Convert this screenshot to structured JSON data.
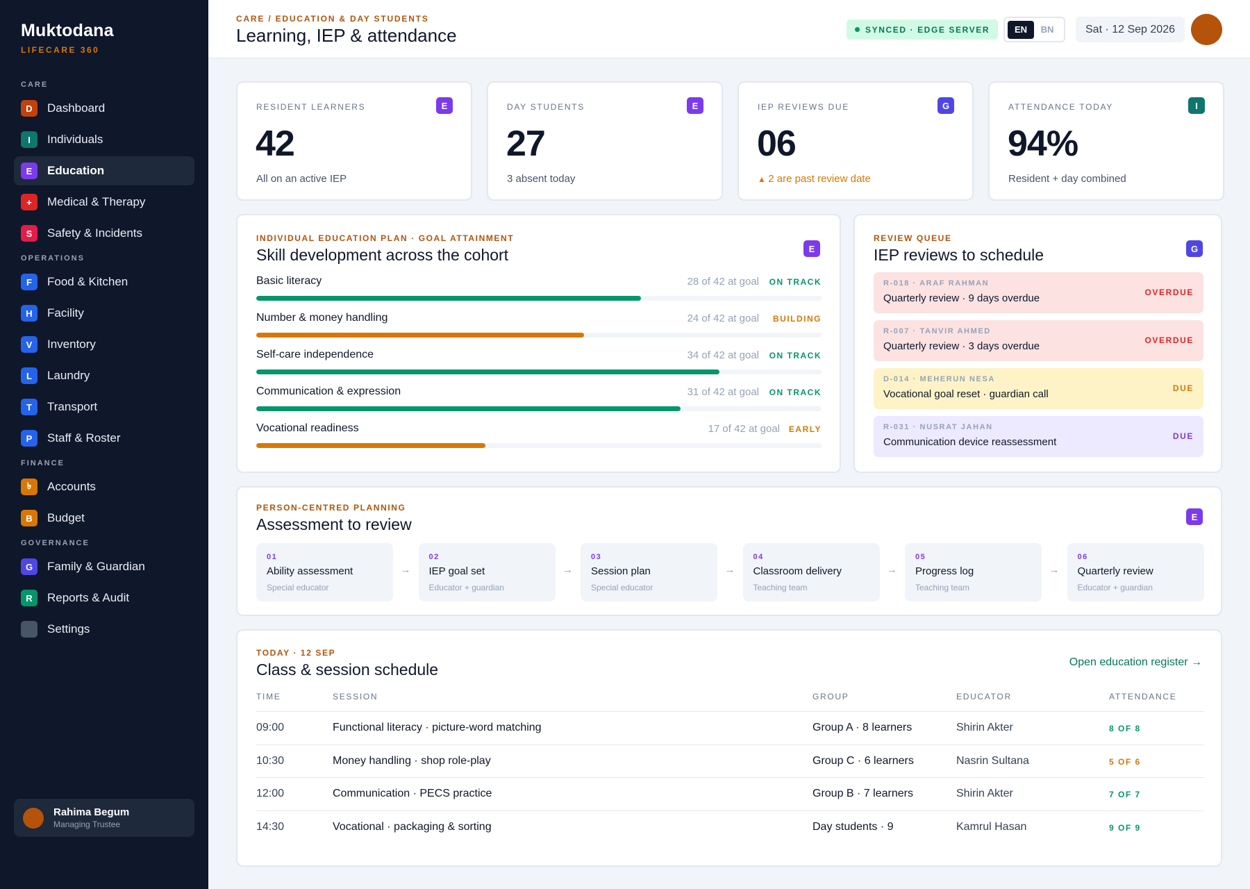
{
  "brand": {
    "name": "Muktodana",
    "sub": "LIFECARE 360"
  },
  "sidebar": {
    "sections": [
      {
        "label": "CARE",
        "items": [
          {
            "letter": "D",
            "label": "Dashboard",
            "color": "#c2410c"
          },
          {
            "letter": "I",
            "label": "Individuals",
            "color": "#0f766e"
          },
          {
            "letter": "E",
            "label": "Education",
            "color": "#7c3aed",
            "active": true
          },
          {
            "letter": "+",
            "label": "Medical & Therapy",
            "color": "#dc2626"
          },
          {
            "letter": "S",
            "label": "Safety & Incidents",
            "color": "#e11d48"
          }
        ]
      },
      {
        "label": "OPERATIONS",
        "items": [
          {
            "letter": "F",
            "label": "Food & Kitchen",
            "color": "#2563eb"
          },
          {
            "letter": "H",
            "label": "Facility",
            "color": "#2563eb"
          },
          {
            "letter": "V",
            "label": "Inventory",
            "color": "#2563eb"
          },
          {
            "letter": "L",
            "label": "Laundry",
            "color": "#2563eb"
          },
          {
            "letter": "T",
            "label": "Transport",
            "color": "#2563eb"
          },
          {
            "letter": "P",
            "label": "Staff & Roster",
            "color": "#2563eb"
          }
        ]
      },
      {
        "label": "FINANCE",
        "items": [
          {
            "letter": "৳",
            "label": "Accounts",
            "color": "#d97706"
          },
          {
            "letter": "B",
            "label": "Budget",
            "color": "#d97706"
          }
        ]
      },
      {
        "label": "GOVERNANCE",
        "items": [
          {
            "letter": "G",
            "label": "Family & Guardian",
            "color": "#4f46e5"
          },
          {
            "letter": "R",
            "label": "Reports & Audit",
            "color": "#059669"
          },
          {
            "letter": "",
            "label": "Settings",
            "color": "#475569"
          }
        ]
      }
    ],
    "user": {
      "name": "Rahima Begum",
      "role": "Managing Trustee"
    }
  },
  "header": {
    "breadcrumb": "CARE / EDUCATION & DAY STUDENTS",
    "title": "Learning, IEP & attendance",
    "sync": "SYNCED · EDGE SERVER",
    "lang": [
      "EN",
      "BN"
    ],
    "date": "Sat · 12 Sep 2026"
  },
  "stats": [
    {
      "label": "RESIDENT LEARNERS",
      "value": "42",
      "note": "All on an active IEP",
      "badge": "E",
      "badge_color": "#7c3aed"
    },
    {
      "label": "DAY STUDENTS",
      "value": "27",
      "note": "3 absent today",
      "badge": "E",
      "badge_color": "#7c3aed"
    },
    {
      "label": "IEP REVIEWS DUE",
      "value": "06",
      "note": "2 are past review date",
      "badge": "G",
      "badge_color": "#4f46e5",
      "warn": true
    },
    {
      "label": "ATTENDANCE TODAY",
      "value": "94%",
      "note": "Resident + day combined",
      "badge": "I",
      "badge_color": "#0f766e"
    }
  ],
  "iep": {
    "eyebrow": "INDIVIDUAL EDUCATION PLAN · GOAL ATTAINMENT",
    "title": "Skill development across the cohort",
    "badge": "E",
    "rows": [
      {
        "label": "Basic literacy",
        "count": "28 of 42 at goal",
        "status": "ON TRACK",
        "fraction": 0.68,
        "color": "#059669"
      },
      {
        "label": "Number & money handling",
        "count": "24 of 42 at goal",
        "status": "BUILDING",
        "fraction": 0.58,
        "color": "#d97706"
      },
      {
        "label": "Self-care independence",
        "count": "34 of 42 at goal",
        "status": "ON TRACK",
        "fraction": 0.82,
        "color": "#059669"
      },
      {
        "label": "Communication & expression",
        "count": "31 of 42 at goal",
        "status": "ON TRACK",
        "fraction": 0.75,
        "color": "#059669"
      },
      {
        "label": "Vocational readiness",
        "count": "17 of 42 at goal",
        "status": "EARLY",
        "fraction": 0.405,
        "color": "#d97706"
      }
    ]
  },
  "review_queue": {
    "eyebrow": "REVIEW QUEUE",
    "title": "IEP reviews to schedule",
    "badge": "G",
    "items": [
      {
        "id": "R-018 · ARAF RAHMAN",
        "text": "Quarterly review · 9 days overdue",
        "status": "OVERDUE",
        "bg": "#fde2e2",
        "accent": "#dc2626"
      },
      {
        "id": "R-007 · TANVIR AHMED",
        "text": "Quarterly review · 3 days overdue",
        "status": "OVERDUE",
        "bg": "#fde2e2",
        "accent": "#dc2626"
      },
      {
        "id": "D-014 · MEHERUN NESA",
        "text": "Vocational goal reset · guardian call",
        "status": "DUE",
        "bg": "#fef3c7",
        "accent": "#d97706"
      },
      {
        "id": "R-031 · NUSRAT JAHAN",
        "text": "Communication device reassessment",
        "status": "DUE",
        "bg": "#ede9fe",
        "accent": "#7c3aed"
      }
    ]
  },
  "assessment": {
    "eyebrow": "PERSON-CENTRED PLANNING",
    "title": "Assessment to review",
    "badge": "E",
    "steps": [
      {
        "num": "01",
        "title": "Ability assessment",
        "who": "Special educator"
      },
      {
        "num": "02",
        "title": "IEP goal set",
        "who": "Educator + guardian"
      },
      {
        "num": "03",
        "title": "Session plan",
        "who": "Special educator"
      },
      {
        "num": "04",
        "title": "Classroom delivery",
        "who": "Teaching team"
      },
      {
        "num": "05",
        "title": "Progress log",
        "who": "Teaching team"
      },
      {
        "num": "06",
        "title": "Quarterly review",
        "who": "Educator + guardian"
      }
    ]
  },
  "schedule": {
    "eyebrow": "TODAY · 12 SEP",
    "title": "Class & session schedule",
    "link": "Open education register →",
    "columns": [
      "TIME",
      "SESSION",
      "GROUP",
      "EDUCATOR",
      "ATTENDANCE"
    ],
    "rows": [
      {
        "time": "09:00",
        "session": "Functional literacy · picture-word matching",
        "group": "Group A · 8 learners",
        "educator": "Shirin Akter",
        "attendance": "8 OF 8",
        "color": "#059669"
      },
      {
        "time": "10:30",
        "session": "Money handling · shop role-play",
        "group": "Group C · 6 learners",
        "educator": "Nasrin Sultana",
        "attendance": "5 OF 6",
        "color": "#d97706"
      },
      {
        "time": "12:00",
        "session": "Communication · PECS practice",
        "group": "Group B · 7 learners",
        "educator": "Shirin Akter",
        "attendance": "7 OF 7",
        "color": "#059669"
      },
      {
        "time": "14:30",
        "session": "Vocational · packaging & sorting",
        "group": "Day students · 9",
        "educator": "Kamrul Hasan",
        "attendance": "9 OF 9",
        "color": "#059669"
      }
    ]
  }
}
